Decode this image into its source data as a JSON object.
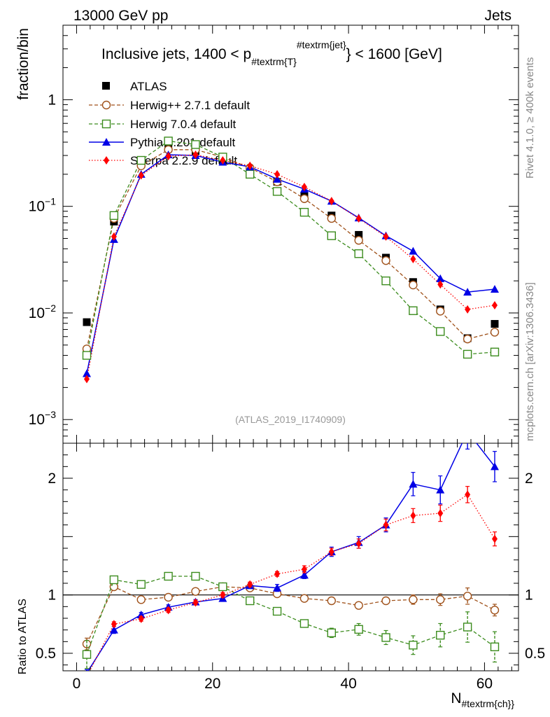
{
  "header": {
    "left": "13000 GeV pp",
    "right": "Jets",
    "side_top": "Rivet 4.1.0, ≥ 400k events",
    "side_bottom": "mcplots.cern.ch [arXiv:1306.3436]",
    "analysis_id": "(ATLAS_2019_I1740909)"
  },
  "colors": {
    "data": "#000000",
    "herwigpp": "#a0521b",
    "herwig7": "#3c8c1e",
    "pythia": "#0000e6",
    "sherpa": "#ff0000"
  },
  "chart_data": [
    {
      "type": "line",
      "title_main": "Inclusive jets, 1400 < p",
      "title_sub": "#textrm{T}",
      "title_sup": "#textrm{jet}",
      "title_end": "} < 1600 [GeV]",
      "ylabel": "fraction/bin",
      "yscale": "log",
      "ylim": [
        0.0006,
        5
      ],
      "xlim": [
        -2,
        65
      ],
      "ytick_labels": [
        {
          "value": 1,
          "base": "1",
          "exp": ""
        },
        {
          "value": 0.1,
          "base": "10",
          "exp": "−1"
        },
        {
          "value": 0.01,
          "base": "10",
          "exp": "−2"
        },
        {
          "value": 0.001,
          "base": "10",
          "exp": "−3"
        }
      ],
      "x": [
        1.5,
        5.5,
        9.5,
        13.5,
        17.5,
        21.5,
        25.5,
        29.5,
        33.5,
        37.5,
        41.5,
        45.5,
        49.5,
        53.5,
        57.5,
        61.5
      ],
      "series": [
        {
          "name": "ATLAS",
          "key": "data",
          "values": [
            0.0082,
            0.072,
            0.25,
            0.35,
            0.33,
            0.27,
            0.22,
            0.17,
            0.125,
            0.082,
            0.054,
            0.033,
            0.0195,
            0.0108,
            0.0058,
            0.0079
          ]
        },
        {
          "name": "Herwig++ 2.7.1 default",
          "key": "herwigpp",
          "values": [
            0.0046,
            0.077,
            0.24,
            0.34,
            0.34,
            0.29,
            0.23,
            0.17,
            0.118,
            0.077,
            0.048,
            0.031,
            0.0183,
            0.0104,
            0.0057,
            0.0066
          ]
        },
        {
          "name": "Herwig 7.0.4 default",
          "key": "herwig7",
          "values": [
            0.004,
            0.082,
            0.27,
            0.41,
            0.38,
            0.29,
            0.2,
            0.138,
            0.088,
            0.053,
            0.036,
            0.02,
            0.0105,
            0.0067,
            0.0041,
            0.0043
          ]
        },
        {
          "name": "Pythia 8.201 default",
          "key": "pythia",
          "values": [
            0.0027,
            0.049,
            0.2,
            0.305,
            0.3,
            0.26,
            0.235,
            0.18,
            0.145,
            0.112,
            0.078,
            0.053,
            0.038,
            0.021,
            0.0157,
            0.0167
          ]
        },
        {
          "name": "Sherpa 2.2.9 default",
          "key": "sherpa",
          "values": [
            0.0024,
            0.052,
            0.195,
            0.295,
            0.305,
            0.27,
            0.24,
            0.2,
            0.152,
            0.112,
            0.077,
            0.052,
            0.032,
            0.0185,
            0.0108,
            0.0118
          ]
        }
      ]
    },
    {
      "type": "line",
      "ylabel": "Ratio to ATLAS",
      "xlabel_main": "N",
      "xlabel_sub": "#textrm{ch}}",
      "xlim": [
        -2,
        65
      ],
      "ylim": [
        0.35,
        2.3
      ],
      "xtick_labels": [
        "0",
        "20",
        "40",
        "60"
      ],
      "xticks": [
        0,
        20,
        40,
        60
      ],
      "ytick_labels": [
        "0.5",
        "1",
        "2"
      ],
      "yticks": [
        0.5,
        1,
        2
      ],
      "x": [
        1.5,
        5.5,
        9.5,
        13.5,
        17.5,
        21.5,
        25.5,
        29.5,
        33.5,
        37.5,
        41.5,
        45.5,
        49.5,
        53.5,
        57.5,
        61.5
      ],
      "series": [
        {
          "name": "Herwig++ 2.7.1 default",
          "key": "herwigpp",
          "values": [
            0.58,
            1.07,
            0.96,
            0.98,
            1.03,
            1.07,
            1.06,
            1.01,
            0.97,
            0.95,
            0.91,
            0.95,
            0.96,
            0.96,
            0.99,
            0.87
          ],
          "errors": [
            0.05,
            0.03,
            0.02,
            0.02,
            0.02,
            0.02,
            0.02,
            0.02,
            0.02,
            0.03,
            0.03,
            0.03,
            0.04,
            0.05,
            0.07,
            0.05
          ]
        },
        {
          "name": "Herwig 7.0.4 default",
          "key": "herwig7",
          "values": [
            0.49,
            1.13,
            1.09,
            1.16,
            1.16,
            1.07,
            0.95,
            0.86,
            0.755,
            0.675,
            0.705,
            0.635,
            0.57,
            0.655,
            0.725,
            0.555
          ],
          "errors": [
            0.12,
            0.03,
            0.02,
            0.02,
            0.02,
            0.02,
            0.02,
            0.02,
            0.03,
            0.04,
            0.05,
            0.06,
            0.08,
            0.1,
            0.13,
            0.13
          ]
        },
        {
          "name": "Pythia 8.201 default",
          "key": "pythia",
          "values": [
            0.33,
            0.7,
            0.83,
            0.895,
            0.94,
            0.97,
            1.08,
            1.06,
            1.17,
            1.37,
            1.45,
            1.6,
            1.95,
            1.9,
            2.4,
            2.1
          ],
          "errors": [
            0.03,
            0.03,
            0.02,
            0.02,
            0.02,
            0.02,
            0.02,
            0.03,
            0.03,
            0.04,
            0.05,
            0.06,
            0.1,
            0.12,
            0.15,
            0.13
          ]
        },
        {
          "name": "Sherpa 2.2.9 default",
          "key": "sherpa",
          "values": [
            0.3,
            0.75,
            0.795,
            0.87,
            0.935,
            1.0,
            1.09,
            1.18,
            1.22,
            1.37,
            1.44,
            1.6,
            1.68,
            1.7,
            1.86,
            1.48
          ],
          "errors": [
            0.03,
            0.02,
            0.02,
            0.02,
            0.02,
            0.02,
            0.02,
            0.02,
            0.03,
            0.03,
            0.04,
            0.05,
            0.06,
            0.07,
            0.07,
            0.06
          ]
        }
      ]
    }
  ]
}
